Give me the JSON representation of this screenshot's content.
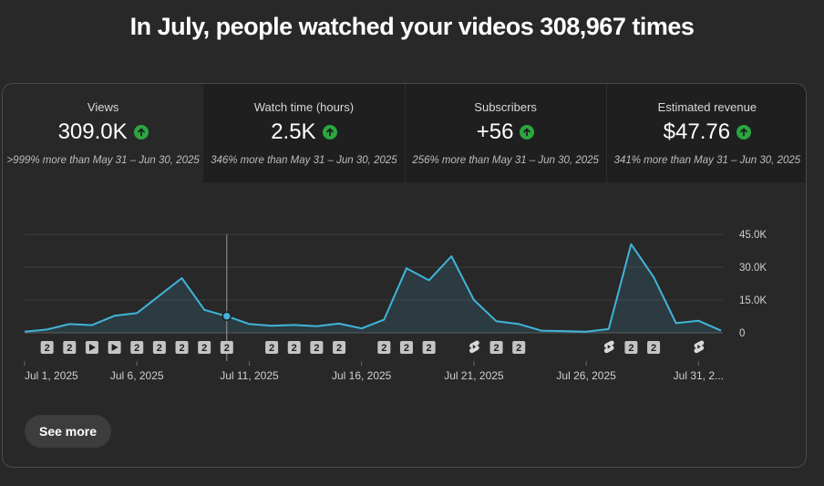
{
  "headline": "In July, people watched your videos 308,967 times",
  "metrics": [
    {
      "label": "Views",
      "value": "309.0K",
      "change": ">999% more than May 31 – Jun 30, 2025"
    },
    {
      "label": "Watch time (hours)",
      "value": "2.5K",
      "change": "346% more than May 31 – Jun 30, 2025"
    },
    {
      "label": "Subscribers",
      "value": "+56",
      "change": "256% more than May 31 – Jun 30, 2025"
    },
    {
      "label": "Estimated revenue",
      "value": "$47.76",
      "change": "341% more than May 31 – Jun 30, 2025"
    }
  ],
  "colors": {
    "line": "#41b4d9",
    "up": "#2ba640",
    "grid": "#3e3e3e"
  },
  "chart_data": {
    "type": "area",
    "title": "",
    "ylim": [
      0,
      45000
    ],
    "yticks": [
      "45.0K",
      "30.0K",
      "15.0K",
      "0"
    ],
    "ytick_values": [
      45000,
      30000,
      15000,
      0
    ],
    "x": [
      1,
      2,
      3,
      4,
      5,
      6,
      7,
      8,
      9,
      10,
      11,
      12,
      13,
      14,
      15,
      16,
      17,
      18,
      19,
      20,
      21,
      22,
      23,
      24,
      25,
      26,
      27,
      28,
      29,
      30,
      31,
      32
    ],
    "values": [
      500,
      1500,
      4000,
      3500,
      7800,
      9000,
      17000,
      25000,
      10500,
      7600,
      4000,
      3200,
      3600,
      3000,
      4200,
      2000,
      6000,
      29500,
      24000,
      35000,
      15000,
      5300,
      4000,
      1000,
      800,
      500,
      1700,
      40500,
      25500,
      4400,
      5500,
      1000
    ],
    "xtick_labels": [
      "Jul 1, 2025",
      "Jul 6, 2025",
      "Jul 11, 2025",
      "Jul 16, 2025",
      "Jul 21, 2025",
      "Jul 26, 2025",
      "Jul 31, 2..."
    ],
    "xtick_positions": [
      1,
      6,
      11,
      16,
      21,
      26,
      31
    ],
    "hover_day": 10,
    "markers": [
      {
        "day": 2,
        "kind": "number",
        "label": "2"
      },
      {
        "day": 3,
        "kind": "number",
        "label": "2"
      },
      {
        "day": 4,
        "kind": "play"
      },
      {
        "day": 5,
        "kind": "play"
      },
      {
        "day": 6,
        "kind": "number",
        "label": "2"
      },
      {
        "day": 7,
        "kind": "number",
        "label": "2"
      },
      {
        "day": 8,
        "kind": "number",
        "label": "2"
      },
      {
        "day": 9,
        "kind": "number",
        "label": "2"
      },
      {
        "day": 10,
        "kind": "number",
        "label": "2"
      },
      {
        "day": 12,
        "kind": "number",
        "label": "2"
      },
      {
        "day": 13,
        "kind": "number",
        "label": "2"
      },
      {
        "day": 14,
        "kind": "number",
        "label": "2"
      },
      {
        "day": 15,
        "kind": "number",
        "label": "2"
      },
      {
        "day": 17,
        "kind": "number",
        "label": "2"
      },
      {
        "day": 18,
        "kind": "number",
        "label": "2"
      },
      {
        "day": 19,
        "kind": "number",
        "label": "2"
      },
      {
        "day": 21,
        "kind": "shorts"
      },
      {
        "day": 22,
        "kind": "number",
        "label": "2"
      },
      {
        "day": 23,
        "kind": "number",
        "label": "2"
      },
      {
        "day": 27,
        "kind": "shorts"
      },
      {
        "day": 28,
        "kind": "number",
        "label": "2"
      },
      {
        "day": 29,
        "kind": "number",
        "label": "2"
      },
      {
        "day": 31,
        "kind": "shorts"
      }
    ]
  },
  "see_more_label": "See more"
}
